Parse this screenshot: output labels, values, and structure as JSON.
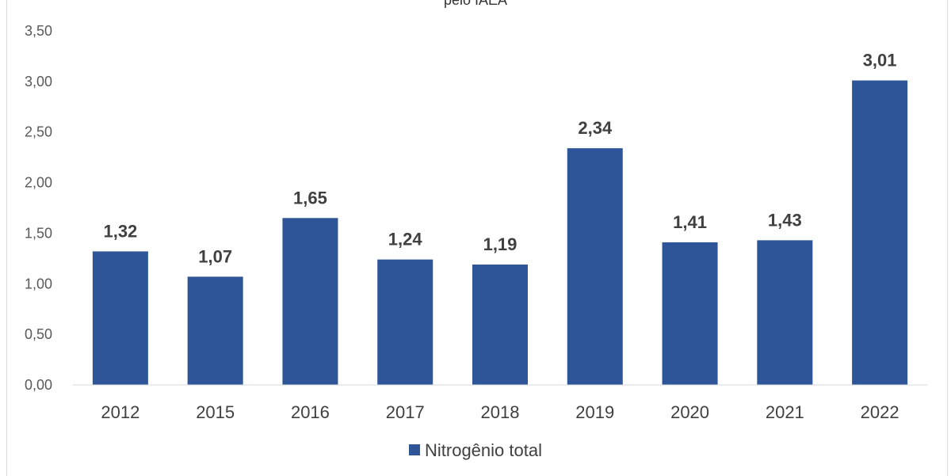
{
  "chart_data": {
    "type": "bar",
    "title": "pelo IAEA",
    "categories": [
      "2012",
      "2015",
      "2016",
      "2017",
      "2018",
      "2019",
      "2020",
      "2021",
      "2022"
    ],
    "series": [
      {
        "name": "Nitrogênio total",
        "values": [
          1.32,
          1.07,
          1.65,
          1.24,
          1.19,
          2.34,
          1.41,
          1.43,
          3.01
        ],
        "color": "#2e5597"
      }
    ],
    "data_labels": [
      "1,32",
      "1,07",
      "1,65",
      "1,24",
      "1,19",
      "2,34",
      "1,41",
      "1,43",
      "3,01"
    ],
    "ylim": [
      0,
      3.5
    ],
    "yticks": [
      "0,00",
      "0,50",
      "1,00",
      "1,50",
      "2,00",
      "2,50",
      "3,00",
      "3,50"
    ],
    "ytick_values": [
      0,
      0.5,
      1.0,
      1.5,
      2.0,
      2.5,
      3.0,
      3.5
    ],
    "grid": false,
    "legend": {
      "position": "bottom",
      "label": "Nitrogênio total"
    }
  }
}
